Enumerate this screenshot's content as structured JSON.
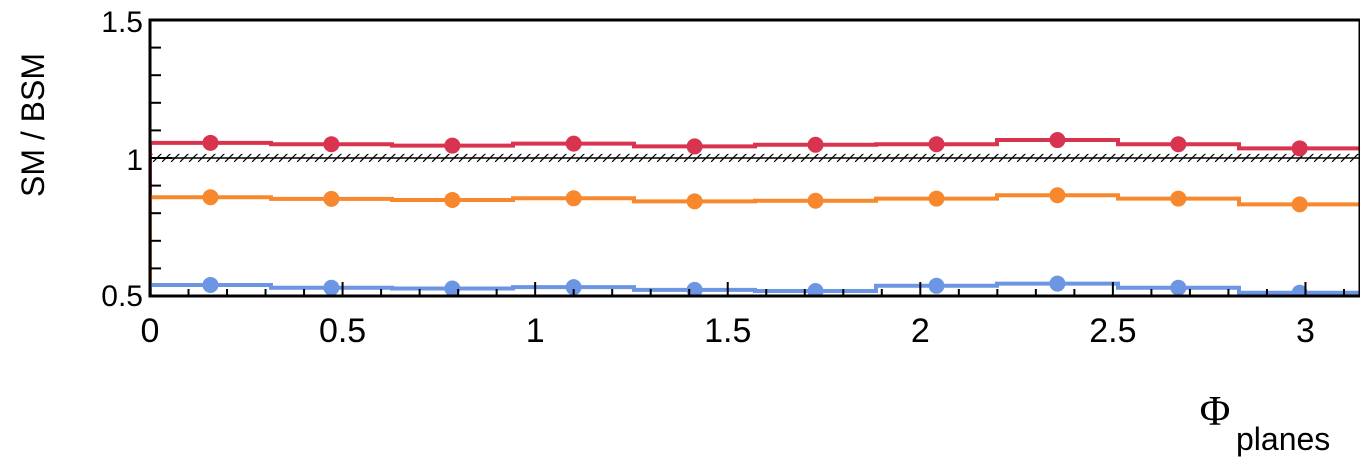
{
  "chart_data": {
    "type": "line",
    "title": "",
    "xlabel_symbol": "Φ",
    "xlabel_subscript": "planes",
    "ylabel": "SM / BSM",
    "xlim": [
      0,
      3.1416
    ],
    "ylim": [
      0.5,
      1.5
    ],
    "x_ticks": [
      0,
      0.5,
      1,
      1.5,
      2,
      2.5,
      3
    ],
    "x_tick_labels": [
      "0",
      "0.5",
      "1",
      "1.5",
      "2",
      "2.5",
      "3"
    ],
    "y_ticks": [
      0.5,
      1,
      1.5
    ],
    "y_tick_labels": [
      "0.5",
      "1",
      "1.5"
    ],
    "grid": false,
    "legend": "none",
    "bin_edges": [
      0,
      0.3142,
      0.6283,
      0.9425,
      1.2566,
      1.5708,
      1.885,
      2.1991,
      2.5133,
      2.8274,
      3.1416
    ],
    "x": [
      0.157,
      0.471,
      0.785,
      1.1,
      1.414,
      1.728,
      2.042,
      2.356,
      2.67,
      2.985
    ],
    "reference_band": {
      "center": 1.0,
      "half_width": 0.015,
      "color": "#000000"
    },
    "series": [
      {
        "color": "#d9344f",
        "values": [
          1.055,
          1.05,
          1.045,
          1.052,
          1.042,
          1.048,
          1.05,
          1.065,
          1.05,
          1.035
        ],
        "errors": [
          0.018,
          0.018,
          0.018,
          0.018,
          0.018,
          0.018,
          0.018,
          0.018,
          0.018,
          0.018
        ]
      },
      {
        "color": "#f7882d",
        "values": [
          0.858,
          0.852,
          0.848,
          0.854,
          0.843,
          0.845,
          0.853,
          0.865,
          0.853,
          0.832
        ],
        "errors": [
          0.018,
          0.018,
          0.018,
          0.018,
          0.018,
          0.018,
          0.018,
          0.018,
          0.018,
          0.018
        ]
      },
      {
        "color": "#6c95e3",
        "values": [
          0.54,
          0.53,
          0.527,
          0.532,
          0.522,
          0.518,
          0.537,
          0.545,
          0.53,
          0.512
        ],
        "errors": [
          0.01,
          0.01,
          0.01,
          0.01,
          0.01,
          0.01,
          0.01,
          0.01,
          0.01,
          0.01
        ]
      }
    ]
  }
}
